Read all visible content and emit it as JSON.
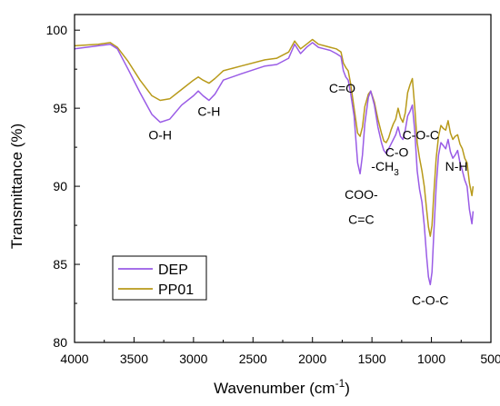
{
  "chart_data": {
    "type": "line",
    "xlabel": "Wavenumber (cm",
    "xlabel_sup": "-1",
    "xlabel_end": ")",
    "ylabel": "Transmittance (%)",
    "xlim": [
      4000,
      500
    ],
    "ylim": [
      80,
      101
    ],
    "x_ticks": [
      4000,
      3500,
      3000,
      2500,
      2000,
      1500,
      1000,
      500
    ],
    "y_ticks": [
      80,
      85,
      90,
      95,
      100
    ],
    "legend_position": "bottom-left",
    "series": [
      {
        "name": "DEP",
        "color": "#9a5ce6",
        "points": [
          [
            4000,
            98.8
          ],
          [
            3800,
            99.0
          ],
          [
            3700,
            99.1
          ],
          [
            3640,
            98.8
          ],
          [
            3550,
            97.5
          ],
          [
            3450,
            96.0
          ],
          [
            3350,
            94.6
          ],
          [
            3280,
            94.1
          ],
          [
            3200,
            94.3
          ],
          [
            3100,
            95.2
          ],
          [
            3000,
            95.8
          ],
          [
            2960,
            96.1
          ],
          [
            2920,
            95.8
          ],
          [
            2870,
            95.5
          ],
          [
            2820,
            95.9
          ],
          [
            2750,
            96.8
          ],
          [
            2600,
            97.2
          ],
          [
            2400,
            97.7
          ],
          [
            2300,
            97.8
          ],
          [
            2200,
            98.2
          ],
          [
            2150,
            99.1
          ],
          [
            2100,
            98.5
          ],
          [
            2050,
            98.9
          ],
          [
            2000,
            99.2
          ],
          [
            1950,
            98.9
          ],
          [
            1900,
            98.8
          ],
          [
            1850,
            98.7
          ],
          [
            1800,
            98.5
          ],
          [
            1760,
            98.3
          ],
          [
            1740,
            97.4
          ],
          [
            1720,
            97.0
          ],
          [
            1700,
            96.8
          ],
          [
            1680,
            96.0
          ],
          [
            1650,
            94.5
          ],
          [
            1620,
            91.5
          ],
          [
            1600,
            90.8
          ],
          [
            1580,
            92.0
          ],
          [
            1560,
            94.0
          ],
          [
            1530,
            95.7
          ],
          [
            1510,
            96.1
          ],
          [
            1480,
            95.2
          ],
          [
            1450,
            93.8
          ],
          [
            1420,
            92.8
          ],
          [
            1400,
            92.3
          ],
          [
            1380,
            92.1
          ],
          [
            1360,
            92.4
          ],
          [
            1340,
            92.7
          ],
          [
            1320,
            93.0
          ],
          [
            1300,
            93.3
          ],
          [
            1280,
            93.8
          ],
          [
            1260,
            93.2
          ],
          [
            1240,
            93.0
          ],
          [
            1220,
            93.6
          ],
          [
            1200,
            94.5
          ],
          [
            1180,
            94.8
          ],
          [
            1160,
            95.2
          ],
          [
            1140,
            93.5
          ],
          [
            1120,
            91.0
          ],
          [
            1100,
            89.8
          ],
          [
            1080,
            89.0
          ],
          [
            1060,
            87.5
          ],
          [
            1040,
            85.5
          ],
          [
            1025,
            84.2
          ],
          [
            1010,
            83.7
          ],
          [
            995,
            84.5
          ],
          [
            980,
            87.0
          ],
          [
            960,
            90.0
          ],
          [
            940,
            92.0
          ],
          [
            920,
            92.8
          ],
          [
            900,
            92.6
          ],
          [
            880,
            92.4
          ],
          [
            860,
            93.0
          ],
          [
            840,
            92.2
          ],
          [
            820,
            91.8
          ],
          [
            800,
            92.0
          ],
          [
            780,
            92.3
          ],
          [
            760,
            91.5
          ],
          [
            740,
            91.0
          ],
          [
            720,
            90.4
          ],
          [
            700,
            90.0
          ],
          [
            680,
            88.5
          ],
          [
            660,
            87.6
          ],
          [
            650,
            88.4
          ]
        ]
      },
      {
        "name": "PP01",
        "color": "#b89a1a",
        "points": [
          [
            4000,
            99.0
          ],
          [
            3800,
            99.1
          ],
          [
            3700,
            99.2
          ],
          [
            3640,
            98.9
          ],
          [
            3550,
            98.0
          ],
          [
            3450,
            96.8
          ],
          [
            3350,
            95.8
          ],
          [
            3280,
            95.5
          ],
          [
            3200,
            95.6
          ],
          [
            3100,
            96.2
          ],
          [
            3000,
            96.8
          ],
          [
            2960,
            97.0
          ],
          [
            2920,
            96.8
          ],
          [
            2870,
            96.6
          ],
          [
            2820,
            96.9
          ],
          [
            2750,
            97.4
          ],
          [
            2600,
            97.7
          ],
          [
            2400,
            98.1
          ],
          [
            2300,
            98.2
          ],
          [
            2200,
            98.6
          ],
          [
            2150,
            99.3
          ],
          [
            2100,
            98.8
          ],
          [
            2050,
            99.1
          ],
          [
            2000,
            99.4
          ],
          [
            1950,
            99.1
          ],
          [
            1900,
            99.0
          ],
          [
            1850,
            98.9
          ],
          [
            1800,
            98.8
          ],
          [
            1760,
            98.6
          ],
          [
            1740,
            97.9
          ],
          [
            1720,
            97.6
          ],
          [
            1700,
            97.4
          ],
          [
            1680,
            96.6
          ],
          [
            1650,
            95.0
          ],
          [
            1620,
            93.4
          ],
          [
            1600,
            93.2
          ],
          [
            1580,
            93.8
          ],
          [
            1560,
            95.1
          ],
          [
            1530,
            95.9
          ],
          [
            1510,
            96.1
          ],
          [
            1480,
            95.4
          ],
          [
            1450,
            94.3
          ],
          [
            1420,
            93.4
          ],
          [
            1400,
            92.9
          ],
          [
            1380,
            92.8
          ],
          [
            1360,
            93.1
          ],
          [
            1340,
            93.6
          ],
          [
            1320,
            94.0
          ],
          [
            1300,
            94.3
          ],
          [
            1280,
            95.0
          ],
          [
            1260,
            94.4
          ],
          [
            1240,
            94.1
          ],
          [
            1220,
            94.7
          ],
          [
            1200,
            96.0
          ],
          [
            1180,
            96.5
          ],
          [
            1160,
            96.9
          ],
          [
            1140,
            95.0
          ],
          [
            1120,
            92.8
          ],
          [
            1100,
            91.8
          ],
          [
            1080,
            91.0
          ],
          [
            1060,
            90.0
          ],
          [
            1040,
            88.5
          ],
          [
            1025,
            87.4
          ],
          [
            1010,
            86.8
          ],
          [
            995,
            87.5
          ],
          [
            980,
            89.5
          ],
          [
            960,
            91.8
          ],
          [
            940,
            93.2
          ],
          [
            920,
            93.9
          ],
          [
            900,
            93.7
          ],
          [
            880,
            93.6
          ],
          [
            860,
            94.2
          ],
          [
            840,
            93.4
          ],
          [
            820,
            93.0
          ],
          [
            800,
            93.2
          ],
          [
            780,
            93.3
          ],
          [
            760,
            92.7
          ],
          [
            740,
            92.4
          ],
          [
            720,
            91.8
          ],
          [
            700,
            91.5
          ],
          [
            680,
            90.2
          ],
          [
            660,
            89.4
          ],
          [
            650,
            90.0
          ]
        ]
      }
    ],
    "annotations": [
      {
        "text": "O-H",
        "x": 3280,
        "y": 93.0
      },
      {
        "text": "C-H",
        "x": 2870,
        "y": 94.5
      },
      {
        "text": "C=O",
        "x": 1750,
        "y": 96.0
      },
      {
        "text": "COO-",
        "x": 1590,
        "y": 89.2
      },
      {
        "text": "C=C",
        "x": 1590,
        "y": 87.6
      },
      {
        "text": "-CH",
        "sub": "3",
        "x": 1390,
        "y": 91.0
      },
      {
        "text": "C-O",
        "x": 1290,
        "y": 91.9
      },
      {
        "text": "C-O-C",
        "x": 1090,
        "y": 93.0
      },
      {
        "text": "N-H",
        "x": 790,
        "y": 91.0
      },
      {
        "text": "C-O-C",
        "x": 1010,
        "y": 82.4
      }
    ]
  }
}
